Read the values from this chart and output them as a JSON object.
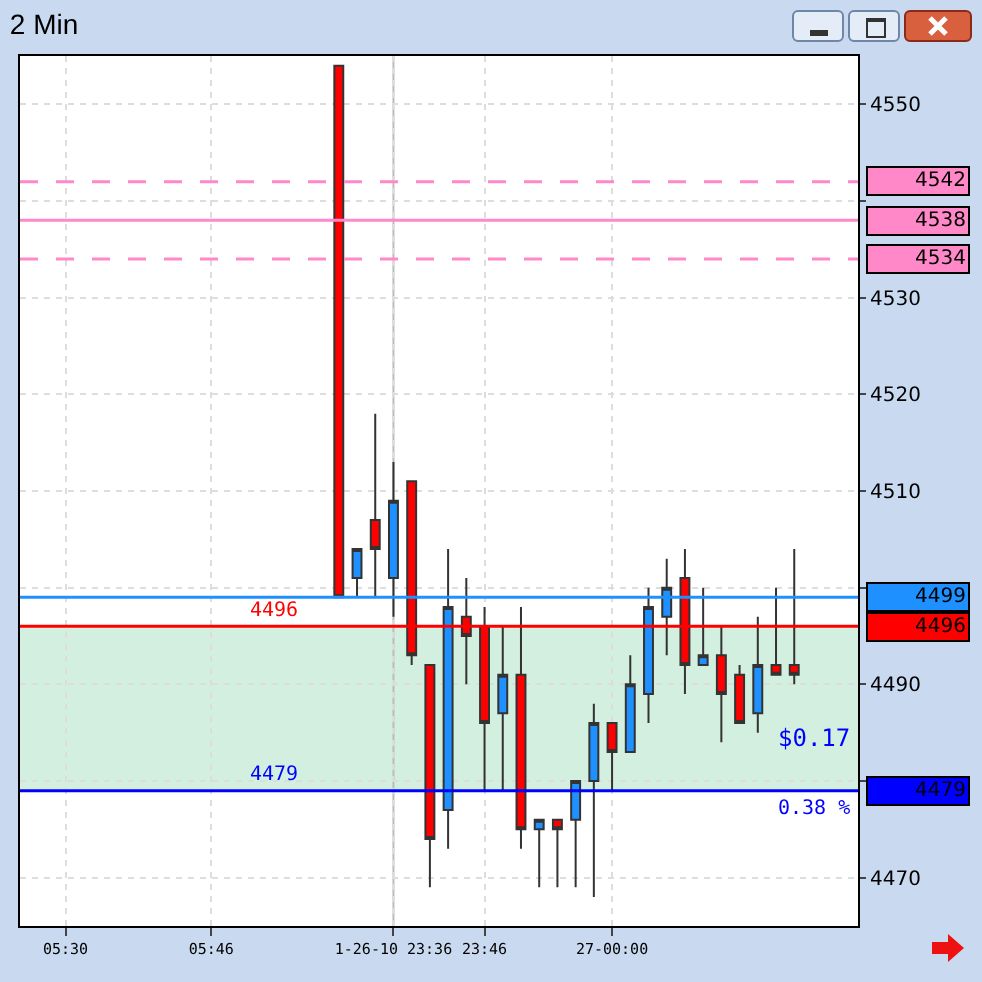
{
  "chart_data": {
    "type": "candlestick",
    "title": "2 Min",
    "categories": [
      null,
      null,
      "05:30",
      null,
      null,
      null,
      null,
      null,
      null,
      null,
      "05:46",
      null,
      null,
      null,
      null,
      null,
      null,
      null,
      null,
      null,
      "1-26-10 23:36",
      null,
      null,
      null,
      null,
      "23:46",
      null,
      null,
      null,
      null,
      null,
      null,
      "27-00:00",
      null,
      null,
      null,
      null,
      null,
      null,
      null,
      null,
      null,
      null,
      null,
      null,
      null
    ],
    "ohlc": [
      null,
      null,
      null,
      null,
      null,
      null,
      null,
      null,
      null,
      null,
      null,
      null,
      null,
      null,
      null,
      null,
      null,
      [
        4554,
        4554,
        4499,
        4499
      ],
      [
        4501,
        4504,
        4499,
        4504
      ],
      [
        4507,
        4518,
        4499,
        4504
      ],
      [
        4501,
        4513,
        4497,
        4509
      ],
      [
        4511,
        4511,
        4492,
        4493
      ],
      [
        4492,
        4492,
        4469,
        4474
      ],
      [
        4477,
        4504,
        4473,
        4498
      ],
      [
        4497,
        4501,
        4490,
        4495
      ],
      [
        4496,
        4498,
        4479,
        4486
      ],
      [
        4487,
        4496,
        4479,
        4491
      ],
      [
        4491,
        4498,
        4473,
        4475
      ],
      [
        4475,
        4476,
        4469,
        4476
      ],
      [
        4476,
        4476,
        4469,
        4475
      ],
      [
        4476,
        4480,
        4469,
        4480
      ],
      [
        4480,
        4488,
        4468,
        4486
      ],
      [
        4486,
        4486,
        4479,
        4483
      ],
      [
        4483,
        4493,
        4483,
        4490
      ],
      [
        4489,
        4500,
        4486,
        4498
      ],
      [
        4497,
        4503,
        4493,
        4500
      ],
      [
        4501,
        4504,
        4489,
        4492
      ],
      [
        4492,
        4500,
        4492,
        4493
      ],
      [
        4493,
        4496,
        4484,
        4489
      ],
      [
        4491,
        4492,
        4486,
        4486
      ],
      [
        4487,
        4497,
        4485,
        4492
      ],
      [
        4492,
        4500,
        4491,
        4491
      ],
      [
        4492,
        4504,
        4490,
        4491
      ],
      null,
      null,
      null
    ],
    "colors": [
      null,
      null,
      null,
      null,
      null,
      null,
      null,
      null,
      null,
      null,
      null,
      null,
      null,
      null,
      null,
      null,
      null,
      "#ff0000",
      "#1e90ff",
      "#ff0000",
      "#1e90ff",
      "#ff0000",
      "#ff0000",
      "#1e90ff",
      "#ff0000",
      "#ff0000",
      "#1e90ff",
      "#ff0000",
      "#1e90ff",
      "#ff0000",
      "#1e90ff",
      "#1e90ff",
      "#ff0000",
      "#1e90ff",
      "#1e90ff",
      "#1e90ff",
      "#ff0000",
      "#1e90ff",
      "#ff0000",
      "#ff0000",
      "#1e90ff",
      "#ff0000",
      "#ff0000",
      null,
      null,
      null
    ],
    "ylim": [
      4465,
      4555
    ],
    "yticks": [
      4470,
      {
        "value": 4480,
        "label": null
      },
      4490,
      {
        "value": 4500,
        "label": null
      },
      4510,
      4520,
      4530,
      {
        "value": 4540,
        "label": null
      },
      4550
    ],
    "grid": true,
    "ref_lines": [
      {
        "axis": "y",
        "value": 4542,
        "label": "4542",
        "color": "#ff88c8",
        "line_style": "dashed"
      },
      {
        "axis": "y",
        "value": 4538,
        "label": "4538",
        "color": "#ff88c8",
        "line_style": "solid"
      },
      {
        "axis": "y",
        "value": 4534,
        "label": "4534",
        "color": "#ff88c8",
        "line_style": "dashed"
      },
      {
        "axis": "y",
        "value": 4499,
        "label": "4499",
        "color": "#1e90ff",
        "line_style": "solid"
      },
      {
        "axis": "y",
        "value": 4496,
        "label": "4496",
        "color": "#ff0000",
        "line_style": "solid"
      },
      {
        "axis": "y",
        "value": 4479,
        "label": "4479",
        "color": "#0000ff",
        "line_style": "solid"
      },
      {
        "axis": "x",
        "value": "1-26-10 23:36",
        "label": null,
        "color": "#bbbbbb",
        "line_style": "solid"
      }
    ],
    "bands": [
      {
        "axis": "y",
        "from": 4479,
        "to": 4496,
        "label": null,
        "color": "#7fd1a4"
      }
    ],
    "annotations": [
      {
        "text": "4496",
        "y": 4496
      },
      {
        "text": "4479",
        "y": 4479
      },
      "$0.17",
      "0.38 %"
    ]
  }
}
